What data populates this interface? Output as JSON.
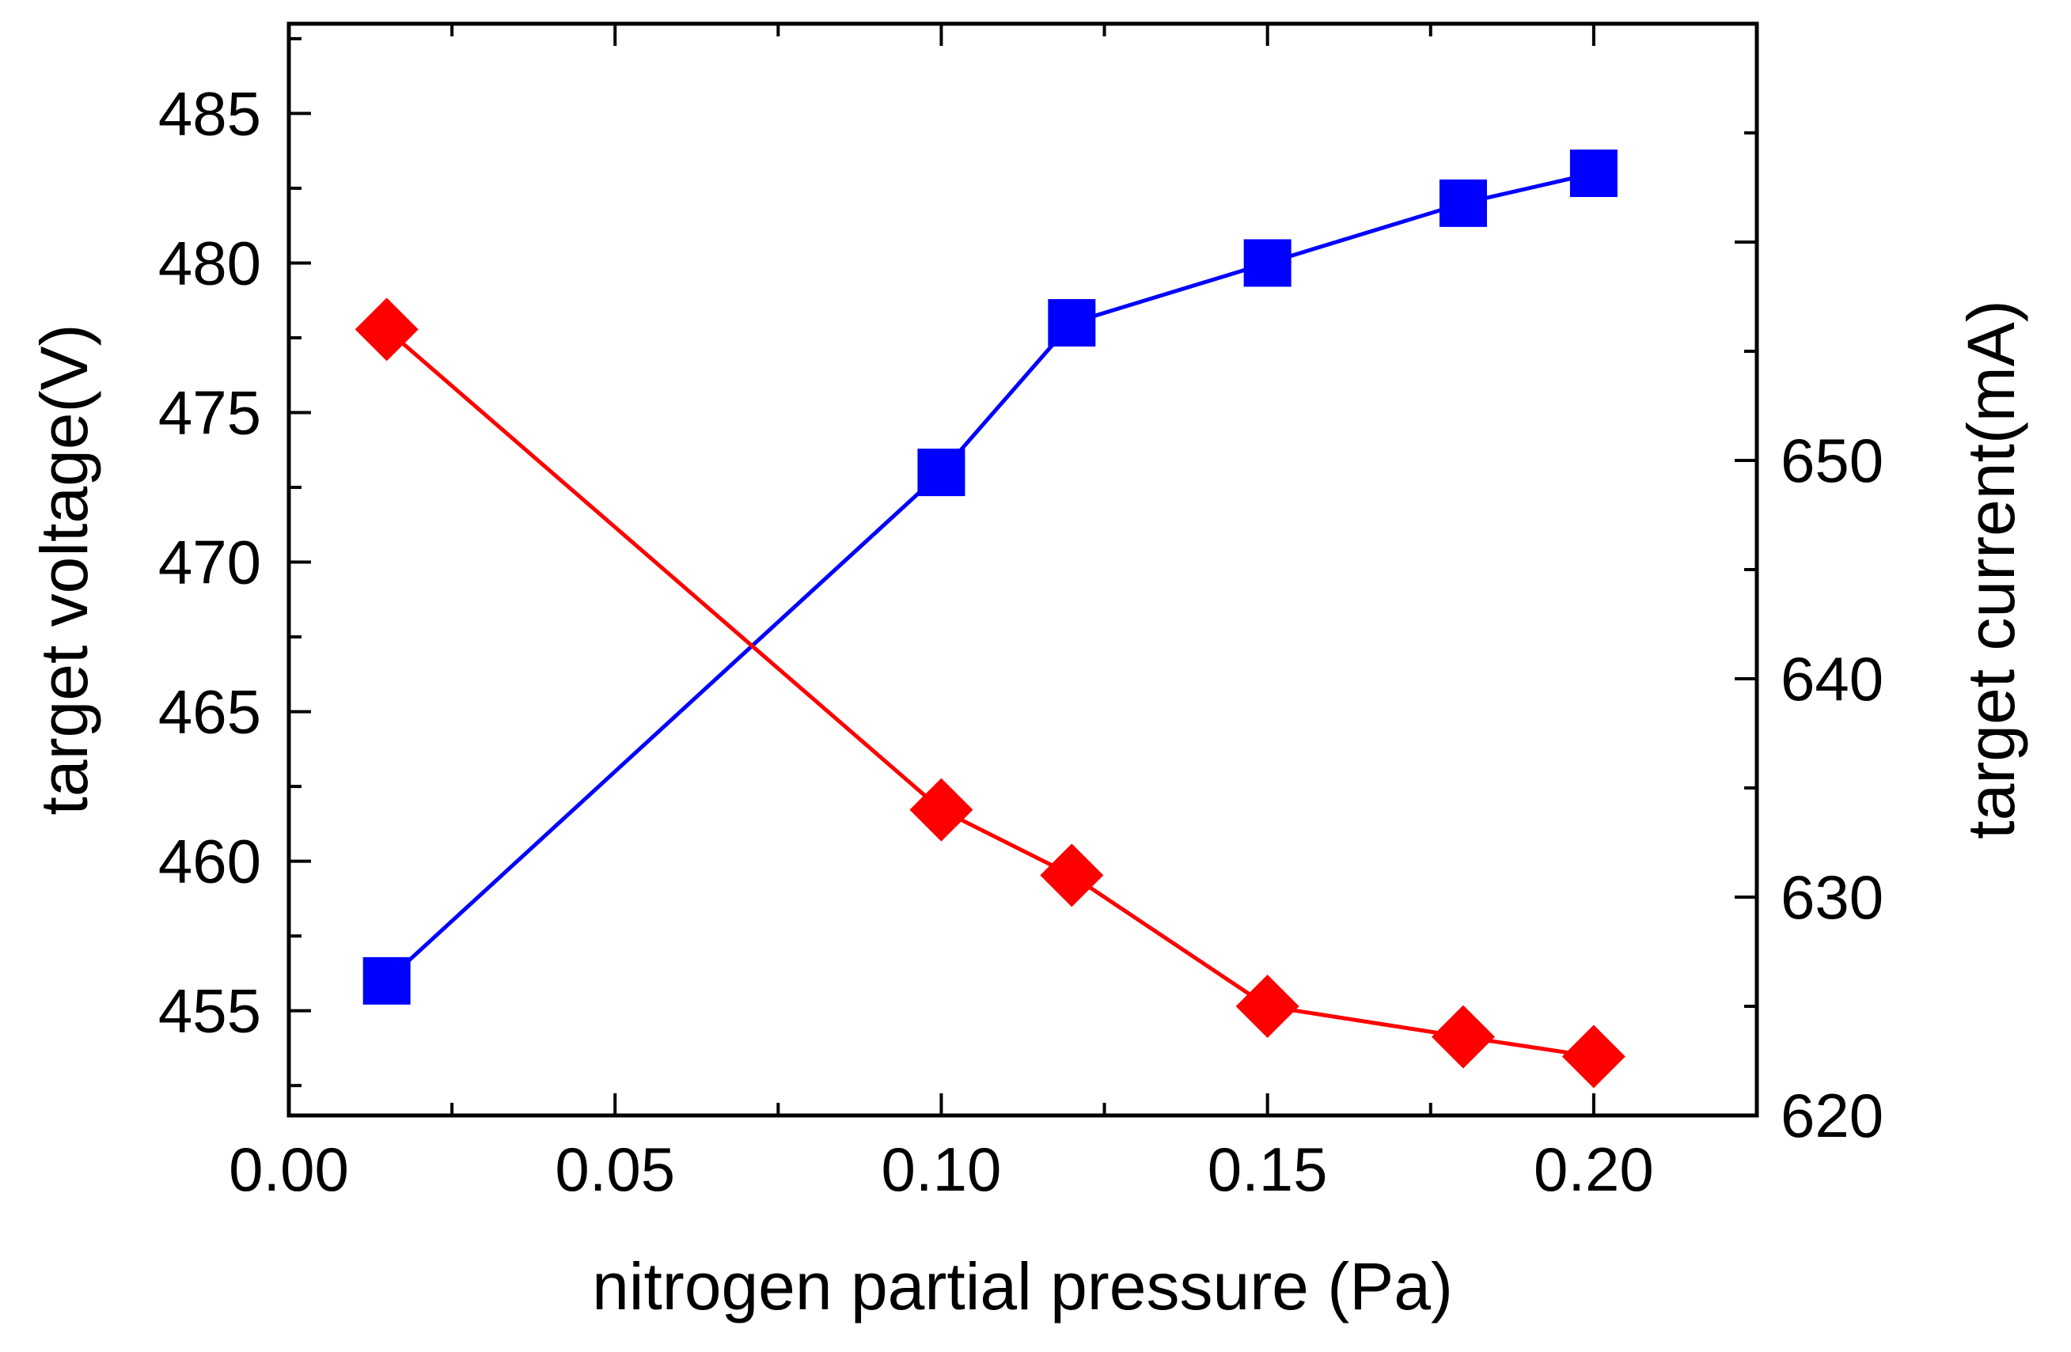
{
  "chart_data": {
    "type": "line",
    "xlabel": "nitrogen partial pressure (Pa)",
    "ylabel_left": "target voltage(V)",
    "ylabel_right": "target current(mA)",
    "xlim": [
      0.0,
      0.225
    ],
    "ylim_left": [
      451.5,
      488.0
    ],
    "ylim_right": [
      620.0,
      670.0
    ],
    "x_ticks": [
      0.0,
      0.05,
      0.1,
      0.15,
      0.2
    ],
    "x_tick_labels": [
      "0.00",
      "0.05",
      "0.10",
      "0.15",
      "0.20"
    ],
    "y_left_ticks": [
      455,
      460,
      465,
      470,
      475,
      480,
      485
    ],
    "y_left_tick_labels": [
      "455",
      "460",
      "465",
      "470",
      "475",
      "480",
      "485"
    ],
    "y_right_ticks": [
      620,
      630,
      640,
      650
    ],
    "y_right_tick_labels": [
      "620",
      "630",
      "640",
      "650"
    ],
    "grid": false,
    "series": [
      {
        "axis": "left",
        "color": "#0000ff",
        "marker": "square",
        "x": [
          0.015,
          0.1,
          0.12,
          0.15,
          0.18,
          0.2
        ],
        "values": [
          456,
          473,
          478,
          480,
          482,
          483
        ]
      },
      {
        "axis": "right",
        "color": "#ff0000",
        "marker": "diamond",
        "x": [
          0.015,
          0.1,
          0.12,
          0.15,
          0.18,
          0.2
        ],
        "values": [
          656,
          634,
          631,
          625,
          623.6,
          622.7
        ]
      }
    ]
  }
}
